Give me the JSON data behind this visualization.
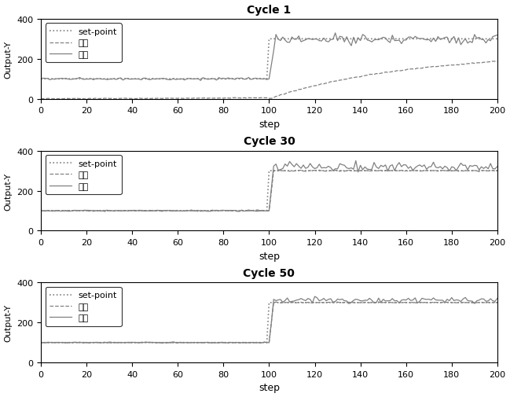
{
  "titles": [
    "Cycle 1",
    "Cycle 30",
    "Cycle 50"
  ],
  "xlabel": "step",
  "ylabel": "Output-Y",
  "xlim": [
    0,
    200
  ],
  "ylim": [
    0,
    400
  ],
  "xticks": [
    0,
    20,
    40,
    60,
    80,
    100,
    120,
    140,
    160,
    180,
    200
  ],
  "yticks": [
    0,
    200,
    400
  ],
  "legend_labels": [
    "set-point",
    "一维",
    "二维"
  ],
  "background_color": "#ffffff"
}
